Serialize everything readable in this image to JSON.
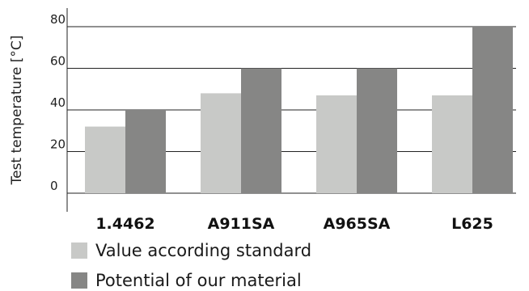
{
  "chart_data": {
    "type": "bar",
    "ylabel": "Test temperature [°C]",
    "xlabel": "",
    "title": "",
    "ylim": [
      0,
      80
    ],
    "yticks": [
      0,
      20,
      40,
      60,
      80
    ],
    "grid": true,
    "legend_position": "bottom",
    "categories": [
      "1.4462",
      "A911SA",
      "A965SA",
      "L625"
    ],
    "series": [
      {
        "name": "Value according standard",
        "color": "#c8c9c7",
        "values": [
          32,
          48,
          47,
          47
        ]
      },
      {
        "name": "Potential of our material",
        "color": "#868685",
        "values": [
          40,
          60,
          60,
          80
        ]
      }
    ]
  }
}
